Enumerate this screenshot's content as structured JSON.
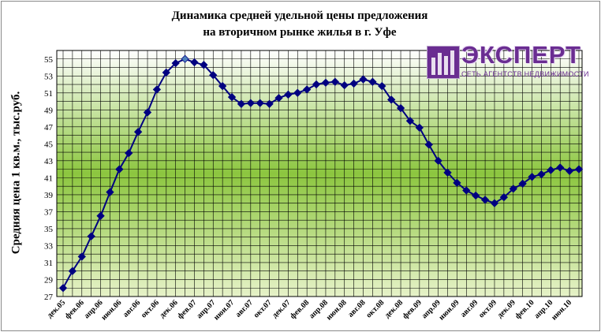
{
  "chart_data": {
    "type": "line",
    "title_line1": "Динамика средней удельной цены предложения",
    "title_line2": "на вторичном рынке жилья в г. Уфе",
    "xlabel": "",
    "ylabel": "Средняя цена 1 кв.м., тыс.руб.",
    "ylim": [
      27,
      56
    ],
    "yticks": [
      27,
      29,
      31,
      33,
      35,
      37,
      39,
      41,
      43,
      45,
      47,
      49,
      51,
      53,
      55
    ],
    "grid": true,
    "legend": "none",
    "x": [
      "дек.05",
      "янв.06",
      "фев.06",
      "мар.06",
      "апр.06",
      "май.06",
      "июн.06",
      "июл.06",
      "авг.06",
      "сен.06",
      "окт.06",
      "ноя.06",
      "дек.06",
      "янв.07",
      "фев.07",
      "мар.07",
      "апр.07",
      "май.07",
      "июн.07",
      "июл.07",
      "авг.07",
      "сен.07",
      "окт.07",
      "ноя.07",
      "дек.07",
      "янв.08",
      "фев.08",
      "мар.08",
      "апр.08",
      "май.08",
      "июн.08",
      "июл.08",
      "авг.08",
      "сен.08",
      "окт.08",
      "ноя.08",
      "дек.08",
      "янв.09",
      "фев.09",
      "мар.09",
      "апр.09",
      "май.09",
      "июн.09",
      "июл.09",
      "авг.09",
      "сен.09",
      "окт.09",
      "ноя.09",
      "дек.09",
      "янв.10",
      "фев.10",
      "мар.10",
      "апр.10",
      "май.10",
      "июн.10",
      "июл.10"
    ],
    "xtick_labels": [
      "дек.05",
      "фев.06",
      "апр.06",
      "июн.06",
      "авг.06",
      "окт.06",
      "дек.06",
      "фев.07",
      "апр.07",
      "июн.07",
      "авг.07",
      "окт.07",
      "дек.07",
      "фев.08",
      "апр.08",
      "июн.08",
      "авг.08",
      "окт.08",
      "дек.08",
      "фев.09",
      "апр.09",
      "июн.09",
      "авг.09",
      "окт.09",
      "дек.09",
      "фев.10",
      "апр.10",
      "июн.10"
    ],
    "series": [
      {
        "name": "",
        "color": "#000080",
        "highlight_color": "#4f81bd",
        "highlight_index": 13,
        "values": [
          28.0,
          30.0,
          31.7,
          34.1,
          36.5,
          39.3,
          42.0,
          43.9,
          46.4,
          48.7,
          51.4,
          53.4,
          54.5,
          55.0,
          54.6,
          54.3,
          53.1,
          51.8,
          50.5,
          49.7,
          49.8,
          49.8,
          49.7,
          50.4,
          50.8,
          51.0,
          51.4,
          52.0,
          52.2,
          52.3,
          51.9,
          52.1,
          52.6,
          52.3,
          51.8,
          50.2,
          49.2,
          47.7,
          46.9,
          44.9,
          43.0,
          41.6,
          40.4,
          39.5,
          38.9,
          38.4,
          38.0,
          38.7,
          39.7,
          40.3,
          41.1,
          41.4,
          41.9,
          42.2,
          41.8,
          42.0
        ]
      }
    ]
  },
  "logo": {
    "word": "ЭКСПЕРТ",
    "tagline": "СЕТЬ АГЕНТСТВ НЕДВИЖИМОСТИ",
    "brand_color": "#6a2d91"
  },
  "colors": {
    "plot_top": "#ffffff",
    "plot_mid": "#8cc63f",
    "plot_bottom": "#e6f2c8",
    "grid": "#000000",
    "line": "#000080"
  }
}
